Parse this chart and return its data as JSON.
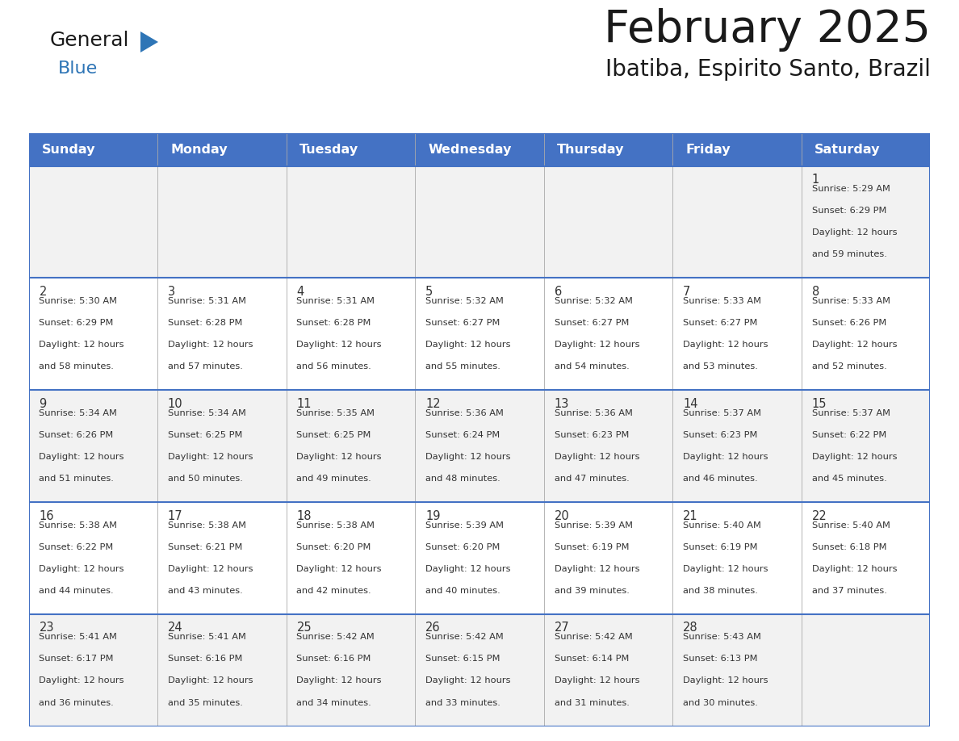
{
  "title": "February 2025",
  "subtitle": "Ibatiba, Espirito Santo, Brazil",
  "header_bg": "#4472C4",
  "header_text": "#FFFFFF",
  "cell_bg_odd": "#F2F2F2",
  "cell_bg_even": "#FFFFFF",
  "border_color": "#4472C4",
  "grid_color": "#AAAAAA",
  "text_color": "#333333",
  "day_names": [
    "Sunday",
    "Monday",
    "Tuesday",
    "Wednesday",
    "Thursday",
    "Friday",
    "Saturday"
  ],
  "days": [
    {
      "date": 1,
      "col": 6,
      "row": 0,
      "sunrise": "5:29 AM",
      "sunset": "6:29 PM",
      "minutes": "59"
    },
    {
      "date": 2,
      "col": 0,
      "row": 1,
      "sunrise": "5:30 AM",
      "sunset": "6:29 PM",
      "minutes": "58"
    },
    {
      "date": 3,
      "col": 1,
      "row": 1,
      "sunrise": "5:31 AM",
      "sunset": "6:28 PM",
      "minutes": "57"
    },
    {
      "date": 4,
      "col": 2,
      "row": 1,
      "sunrise": "5:31 AM",
      "sunset": "6:28 PM",
      "minutes": "56"
    },
    {
      "date": 5,
      "col": 3,
      "row": 1,
      "sunrise": "5:32 AM",
      "sunset": "6:27 PM",
      "minutes": "55"
    },
    {
      "date": 6,
      "col": 4,
      "row": 1,
      "sunrise": "5:32 AM",
      "sunset": "6:27 PM",
      "minutes": "54"
    },
    {
      "date": 7,
      "col": 5,
      "row": 1,
      "sunrise": "5:33 AM",
      "sunset": "6:27 PM",
      "minutes": "53"
    },
    {
      "date": 8,
      "col": 6,
      "row": 1,
      "sunrise": "5:33 AM",
      "sunset": "6:26 PM",
      "minutes": "52"
    },
    {
      "date": 9,
      "col": 0,
      "row": 2,
      "sunrise": "5:34 AM",
      "sunset": "6:26 PM",
      "minutes": "51"
    },
    {
      "date": 10,
      "col": 1,
      "row": 2,
      "sunrise": "5:34 AM",
      "sunset": "6:25 PM",
      "minutes": "50"
    },
    {
      "date": 11,
      "col": 2,
      "row": 2,
      "sunrise": "5:35 AM",
      "sunset": "6:25 PM",
      "minutes": "49"
    },
    {
      "date": 12,
      "col": 3,
      "row": 2,
      "sunrise": "5:36 AM",
      "sunset": "6:24 PM",
      "minutes": "48"
    },
    {
      "date": 13,
      "col": 4,
      "row": 2,
      "sunrise": "5:36 AM",
      "sunset": "6:23 PM",
      "minutes": "47"
    },
    {
      "date": 14,
      "col": 5,
      "row": 2,
      "sunrise": "5:37 AM",
      "sunset": "6:23 PM",
      "minutes": "46"
    },
    {
      "date": 15,
      "col": 6,
      "row": 2,
      "sunrise": "5:37 AM",
      "sunset": "6:22 PM",
      "minutes": "45"
    },
    {
      "date": 16,
      "col": 0,
      "row": 3,
      "sunrise": "5:38 AM",
      "sunset": "6:22 PM",
      "minutes": "44"
    },
    {
      "date": 17,
      "col": 1,
      "row": 3,
      "sunrise": "5:38 AM",
      "sunset": "6:21 PM",
      "minutes": "43"
    },
    {
      "date": 18,
      "col": 2,
      "row": 3,
      "sunrise": "5:38 AM",
      "sunset": "6:20 PM",
      "minutes": "42"
    },
    {
      "date": 19,
      "col": 3,
      "row": 3,
      "sunrise": "5:39 AM",
      "sunset": "6:20 PM",
      "minutes": "40"
    },
    {
      "date": 20,
      "col": 4,
      "row": 3,
      "sunrise": "5:39 AM",
      "sunset": "6:19 PM",
      "minutes": "39"
    },
    {
      "date": 21,
      "col": 5,
      "row": 3,
      "sunrise": "5:40 AM",
      "sunset": "6:19 PM",
      "minutes": "38"
    },
    {
      "date": 22,
      "col": 6,
      "row": 3,
      "sunrise": "5:40 AM",
      "sunset": "6:18 PM",
      "minutes": "37"
    },
    {
      "date": 23,
      "col": 0,
      "row": 4,
      "sunrise": "5:41 AM",
      "sunset": "6:17 PM",
      "minutes": "36"
    },
    {
      "date": 24,
      "col": 1,
      "row": 4,
      "sunrise": "5:41 AM",
      "sunset": "6:16 PM",
      "minutes": "35"
    },
    {
      "date": 25,
      "col": 2,
      "row": 4,
      "sunrise": "5:42 AM",
      "sunset": "6:16 PM",
      "minutes": "34"
    },
    {
      "date": 26,
      "col": 3,
      "row": 4,
      "sunrise": "5:42 AM",
      "sunset": "6:15 PM",
      "minutes": "33"
    },
    {
      "date": 27,
      "col": 4,
      "row": 4,
      "sunrise": "5:42 AM",
      "sunset": "6:14 PM",
      "minutes": "31"
    },
    {
      "date": 28,
      "col": 5,
      "row": 4,
      "sunrise": "5:43 AM",
      "sunset": "6:13 PM",
      "minutes": "30"
    }
  ],
  "num_rows": 5,
  "logo_text1": "General",
  "logo_text2": "Blue",
  "logo_color1": "#1a1a1a",
  "logo_color2": "#2e75b6",
  "triangle_color": "#2e75b6",
  "fig_width": 11.88,
  "fig_height": 9.18,
  "dpi": 100
}
